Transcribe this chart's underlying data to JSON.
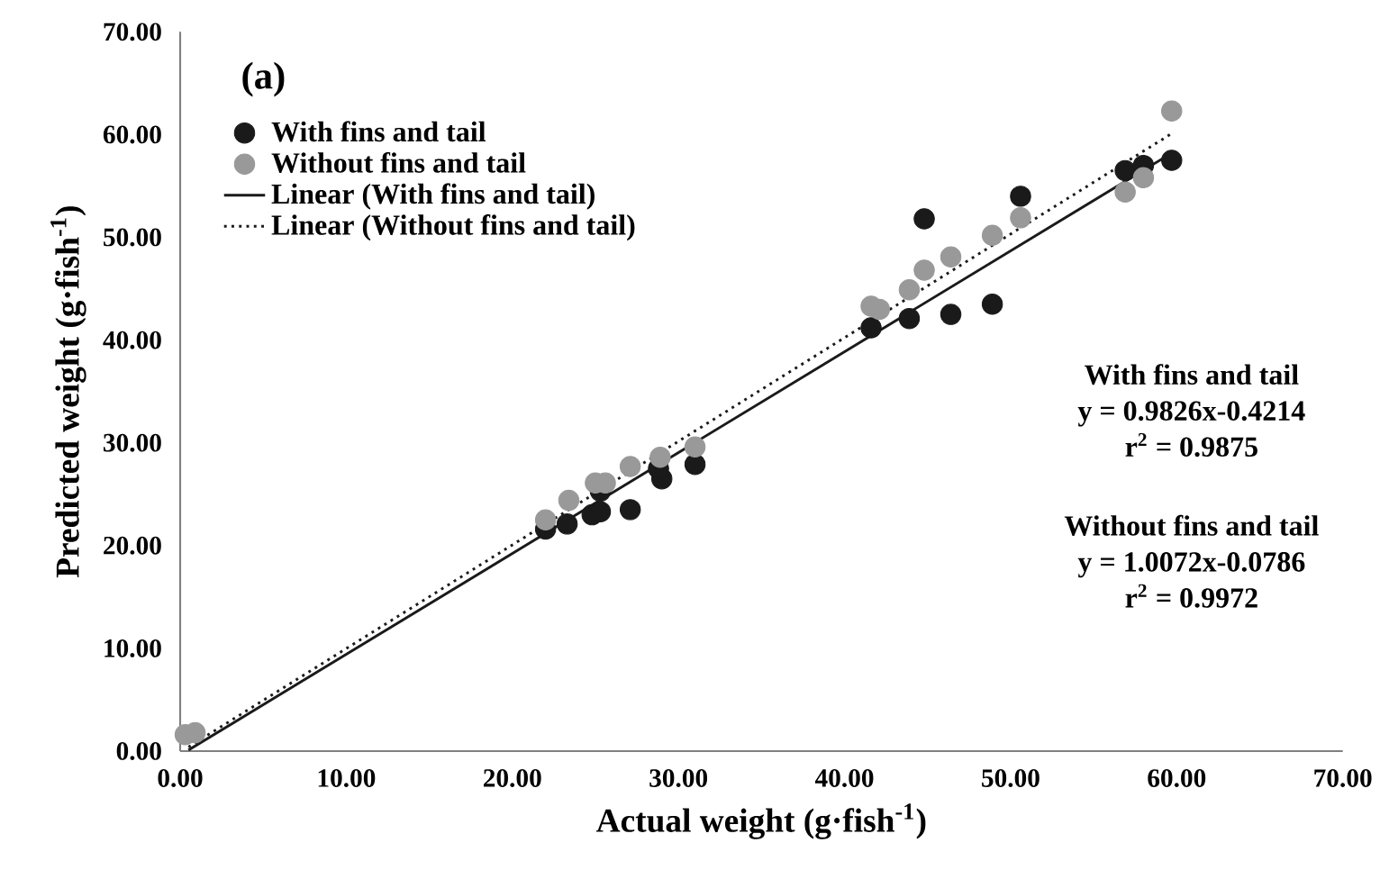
{
  "chart_data": {
    "type": "scatter",
    "title": "(a)",
    "xlabel": "Actual weight (g·fish$^{-1}$)",
    "ylabel": "Predicted weight (g·fish$^{-1}$)",
    "xlim": [
      0,
      70
    ],
    "ylim": [
      0,
      70
    ],
    "xticks": [
      {
        "value": 0,
        "label": "0.00"
      },
      {
        "value": 10,
        "label": "10.00"
      },
      {
        "value": 20,
        "label": "20.00"
      },
      {
        "value": 30,
        "label": "30.00"
      },
      {
        "value": 40,
        "label": "40.00"
      },
      {
        "value": 50,
        "label": "50.00"
      },
      {
        "value": 60,
        "label": "60.00"
      },
      {
        "value": 70,
        "label": "70.00"
      }
    ],
    "yticks": [
      {
        "value": 0,
        "label": "0.00"
      },
      {
        "value": 10,
        "label": "10.00"
      },
      {
        "value": 20,
        "label": "20.00"
      },
      {
        "value": 30,
        "label": "30.00"
      },
      {
        "value": 40,
        "label": "40.00"
      },
      {
        "value": 50,
        "label": "50.00"
      },
      {
        "value": 60,
        "label": "60.00"
      },
      {
        "value": 70,
        "label": "70.00"
      }
    ],
    "legend": "top left",
    "series": [
      {
        "name": "With fins and tail",
        "marker": "circle",
        "color": "#1a1a1a",
        "x": [
          22.0,
          23.3,
          24.8,
          25.3,
          25.3,
          27.1,
          29.0,
          28.8,
          31.0,
          41.6,
          43.9,
          46.4,
          48.9,
          44.8,
          50.6,
          56.9,
          58.0,
          59.7
        ],
        "values": [
          21.6,
          22.1,
          23.0,
          23.3,
          25.3,
          23.5,
          26.5,
          27.5,
          27.9,
          41.2,
          42.1,
          42.5,
          43.5,
          51.8,
          54.0,
          56.5,
          57.0,
          57.5
        ]
      },
      {
        "name": "Without fins and tail",
        "marker": "circle",
        "color": "#999999",
        "x": [
          0.3,
          0.9,
          22.0,
          23.4,
          25.0,
          25.6,
          27.1,
          28.9,
          31.0,
          41.6,
          42.1,
          43.9,
          44.8,
          46.4,
          48.9,
          50.6,
          56.9,
          58.0,
          59.7
        ],
        "values": [
          1.6,
          1.8,
          22.5,
          24.4,
          26.1,
          26.1,
          27.7,
          28.6,
          29.6,
          43.3,
          43.0,
          44.9,
          46.8,
          48.1,
          50.2,
          51.9,
          54.4,
          55.8,
          62.3
        ]
      },
      {
        "name": "Linear (With fins and tail)",
        "type": "line",
        "line_style": "solid",
        "marker": "none",
        "color": "#1a1a1a",
        "x": [
          0.5,
          59.7
        ],
        "values": [
          0.1,
          58.2
        ]
      },
      {
        "name": "Linear (Without fins and tail)",
        "type": "line",
        "line_style": "dotted",
        "marker": "none",
        "color": "#1a1a1a",
        "x": [
          0.5,
          59.7
        ],
        "values": [
          0.4,
          60.1
        ]
      }
    ],
    "annotations": [
      "With fins and tail",
      "y = 0.9826x-0.4214",
      "r$^{2}$ = 0.9875",
      "Without fins and tail",
      "y = 1.0072x-0.0786",
      "r$^{2}$ = 0.9972"
    ]
  }
}
